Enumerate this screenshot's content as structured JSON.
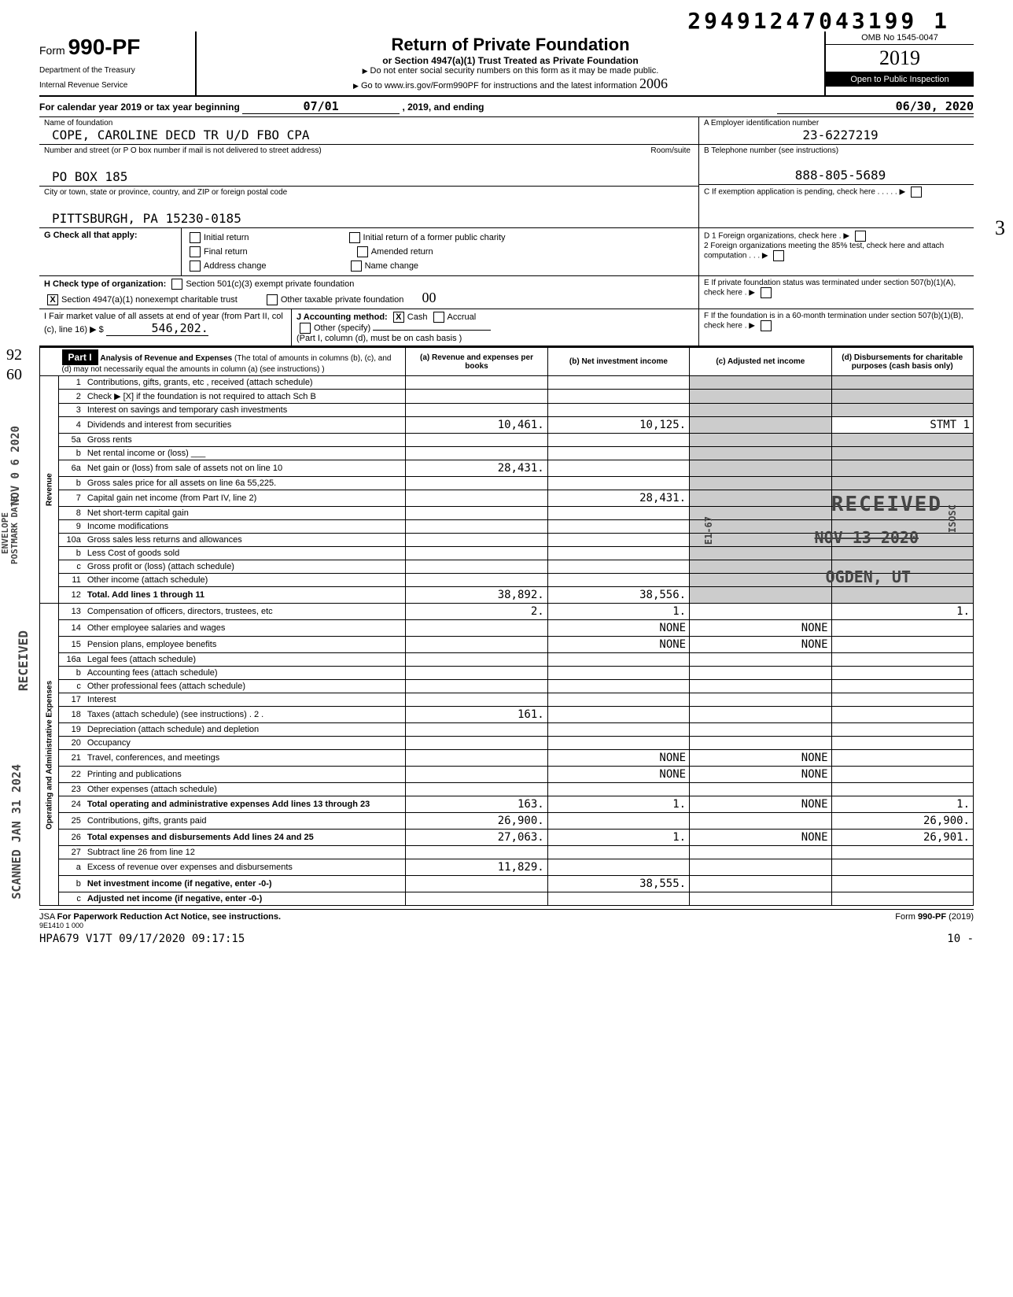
{
  "tracking_number": "29491247043199 1",
  "form": {
    "number": "990-PF",
    "dept1": "Department of the Treasury",
    "dept2": "Internal Revenue Service",
    "title": "Return of Private Foundation",
    "subtitle": "or Section 4947(a)(1) Trust Treated as Private Foundation",
    "warning": "Do not enter social security numbers on this form as it may be made public.",
    "goto": "Go to www.irs.gov/Form990PF for instructions and the latest information",
    "omb": "OMB No 1545-0047",
    "year": "2019",
    "inspection": "Open to Public Inspection",
    "handwritten_year": "2006"
  },
  "calendar": {
    "prefix": "For calendar year 2019 or tax year beginning",
    "begin": "07/01",
    "mid": ", 2019, and ending",
    "end": "06/30, 2020"
  },
  "foundation": {
    "name_label": "Name of foundation",
    "name": "COPE, CAROLINE DECD TR U/D FBO CPA",
    "addr_label": "Number and street (or P O box number if mail is not delivered to street address)",
    "room_label": "Room/suite",
    "addr": "PO BOX 185",
    "city_label": "City or town, state or province, country, and ZIP or foreign postal code",
    "city": "PITTSBURGH, PA 15230-0185"
  },
  "right_boxes": {
    "a_label": "A  Employer identification number",
    "a_value": "23-6227219",
    "b_label": "B  Telephone number (see instructions)",
    "b_value": "888-805-5689",
    "c_label": "C  If exemption application is pending, check here",
    "d1": "D 1 Foreign organizations, check here",
    "d2": "2 Foreign organizations meeting the 85% test, check here and attach computation",
    "e": "E  If private foundation status was terminated under section 507(b)(1)(A), check here",
    "f": "F  If the foundation is in a 60-month termination under section 507(b)(1)(B), check here"
  },
  "section_g": {
    "label": "G Check all that apply:",
    "opts": [
      "Initial return",
      "Final return",
      "Address change",
      "Initial return of a former public charity",
      "Amended return",
      "Name change"
    ]
  },
  "section_h": {
    "label": "H Check type of organization:",
    "opt1": "Section 501(c)(3) exempt private foundation",
    "opt2": "Section 4947(a)(1) nonexempt charitable trust",
    "opt2_checked": "X",
    "opt3": "Other taxable private foundation",
    "handwritten": "00"
  },
  "section_i": {
    "label": "I  Fair market value of all assets at end of year (from Part II, col (c), line 16) ▶ $",
    "value": "546,202.",
    "j_label": "J Accounting method:",
    "j_cash": "Cash",
    "j_cash_checked": "X",
    "j_accrual": "Accrual",
    "j_other": "Other (specify)",
    "note": "(Part I, column (d), must be on cash basis )"
  },
  "part1": {
    "header": "Part I",
    "title": "Analysis of Revenue and Expenses",
    "note": "(The total of amounts in columns (b), (c), and (d) may not necessarily equal the amounts in column (a) (see instructions) )",
    "col_a": "(a) Revenue and expenses per books",
    "col_b": "(b) Net investment income",
    "col_c": "(c) Adjusted net income",
    "col_d": "(d) Disbursements for charitable purposes (cash basis only)"
  },
  "side_revenue": "Revenue",
  "side_expenses": "Operating and Administrative Expenses",
  "rows": [
    {
      "n": "1",
      "d": "Contributions, gifts, grants, etc , received (attach schedule)",
      "a": "",
      "b": "",
      "c": "",
      "dd": ""
    },
    {
      "n": "2",
      "d": "Check ▶ [X] if the foundation is not required to attach Sch B",
      "a": "",
      "b": "",
      "c": "",
      "dd": ""
    },
    {
      "n": "3",
      "d": "Interest on savings and temporary cash investments",
      "a": "",
      "b": "",
      "c": "",
      "dd": ""
    },
    {
      "n": "4",
      "d": "Dividends and interest from securities",
      "a": "10,461.",
      "b": "10,125.",
      "c": "",
      "dd": "STMT 1"
    },
    {
      "n": "5a",
      "d": "Gross rents",
      "a": "",
      "b": "",
      "c": "",
      "dd": ""
    },
    {
      "n": "b",
      "d": "Net rental income or (loss) ___",
      "a": "",
      "b": "",
      "c": "",
      "dd": ""
    },
    {
      "n": "6a",
      "d": "Net gain or (loss) from sale of assets not on line 10",
      "a": "28,431.",
      "b": "",
      "c": "",
      "dd": ""
    },
    {
      "n": "b",
      "d": "Gross sales price for all assets on line 6a    55,225.",
      "a": "",
      "b": "",
      "c": "",
      "dd": ""
    },
    {
      "n": "7",
      "d": "Capital gain net income (from Part IV, line 2)",
      "a": "",
      "b": "28,431.",
      "c": "",
      "dd": ""
    },
    {
      "n": "8",
      "d": "Net short-term capital gain",
      "a": "",
      "b": "",
      "c": "",
      "dd": ""
    },
    {
      "n": "9",
      "d": "Income modifications",
      "a": "",
      "b": "",
      "c": "",
      "dd": ""
    },
    {
      "n": "10a",
      "d": "Gross sales less returns and allowances",
      "a": "",
      "b": "",
      "c": "",
      "dd": ""
    },
    {
      "n": "b",
      "d": "Less Cost of goods sold",
      "a": "",
      "b": "",
      "c": "",
      "dd": ""
    },
    {
      "n": "c",
      "d": "Gross profit or (loss) (attach schedule)",
      "a": "",
      "b": "",
      "c": "",
      "dd": ""
    },
    {
      "n": "11",
      "d": "Other income (attach schedule)",
      "a": "",
      "b": "",
      "c": "",
      "dd": ""
    },
    {
      "n": "12",
      "d": "Total. Add lines 1 through 11",
      "a": "38,892.",
      "b": "38,556.",
      "c": "",
      "dd": "",
      "bold": true
    },
    {
      "n": "13",
      "d": "Compensation of officers, directors, trustees, etc",
      "a": "2.",
      "b": "1.",
      "c": "",
      "dd": "1."
    },
    {
      "n": "14",
      "d": "Other employee salaries and wages",
      "a": "",
      "b": "NONE",
      "c": "NONE",
      "dd": ""
    },
    {
      "n": "15",
      "d": "Pension plans, employee benefits",
      "a": "",
      "b": "NONE",
      "c": "NONE",
      "dd": ""
    },
    {
      "n": "16a",
      "d": "Legal fees (attach schedule)",
      "a": "",
      "b": "",
      "c": "",
      "dd": ""
    },
    {
      "n": "b",
      "d": "Accounting fees (attach schedule)",
      "a": "",
      "b": "",
      "c": "",
      "dd": ""
    },
    {
      "n": "c",
      "d": "Other professional fees (attach schedule)",
      "a": "",
      "b": "",
      "c": "",
      "dd": ""
    },
    {
      "n": "17",
      "d": "Interest",
      "a": "",
      "b": "",
      "c": "",
      "dd": ""
    },
    {
      "n": "18",
      "d": "Taxes (attach schedule) (see instructions) . 2 .",
      "a": "161.",
      "b": "",
      "c": "",
      "dd": ""
    },
    {
      "n": "19",
      "d": "Depreciation (attach schedule) and depletion",
      "a": "",
      "b": "",
      "c": "",
      "dd": ""
    },
    {
      "n": "20",
      "d": "Occupancy",
      "a": "",
      "b": "",
      "c": "",
      "dd": ""
    },
    {
      "n": "21",
      "d": "Travel, conferences, and meetings",
      "a": "",
      "b": "NONE",
      "c": "NONE",
      "dd": ""
    },
    {
      "n": "22",
      "d": "Printing and publications",
      "a": "",
      "b": "NONE",
      "c": "NONE",
      "dd": ""
    },
    {
      "n": "23",
      "d": "Other expenses (attach schedule)",
      "a": "",
      "b": "",
      "c": "",
      "dd": ""
    },
    {
      "n": "24",
      "d": "Total operating and administrative expenses Add lines 13 through 23",
      "a": "163.",
      "b": "1.",
      "c": "NONE",
      "dd": "1.",
      "bold": true
    },
    {
      "n": "25",
      "d": "Contributions, gifts, grants paid",
      "a": "26,900.",
      "b": "",
      "c": "",
      "dd": "26,900."
    },
    {
      "n": "26",
      "d": "Total expenses and disbursements Add lines 24 and 25",
      "a": "27,063.",
      "b": "1.",
      "c": "NONE",
      "dd": "26,901.",
      "bold": true
    },
    {
      "n": "27",
      "d": "Subtract line 26 from line 12",
      "a": "",
      "b": "",
      "c": "",
      "dd": ""
    },
    {
      "n": "a",
      "d": "Excess of revenue over expenses and disbursements",
      "a": "11,829.",
      "b": "",
      "c": "",
      "dd": ""
    },
    {
      "n": "b",
      "d": "Net investment income (if negative, enter -0-)",
      "a": "",
      "b": "38,555.",
      "c": "",
      "dd": "",
      "bold": true
    },
    {
      "n": "c",
      "d": "Adjusted net income (if negative, enter -0-)",
      "a": "",
      "b": "",
      "c": "",
      "dd": "",
      "bold": true
    }
  ],
  "stamps": {
    "received1": "RECEIVED",
    "received_date": "NOV 13 2020",
    "ogden": "OGDEN, UT",
    "postmark": "POSTMARK DATE",
    "envelope": "ENVELOPE",
    "nov06": "NOV 0 6 2020",
    "e167": "E1-67",
    "isosc": "ISOSC",
    "scanned": "SCANNED JAN 31 2024",
    "received_left": "RECEIVED"
  },
  "margin": {
    "left_92": "92",
    "left_60": "60",
    "right_3": "3"
  },
  "footer": {
    "jsa": "JSA",
    "notice": "For Paperwork Reduction Act Notice, see instructions.",
    "form": "Form 990-PF (2019)",
    "code": "9E1410 1 000",
    "stamp": "HPA679 V17T 09/17/2020 09:17:15",
    "page": "10  -"
  }
}
